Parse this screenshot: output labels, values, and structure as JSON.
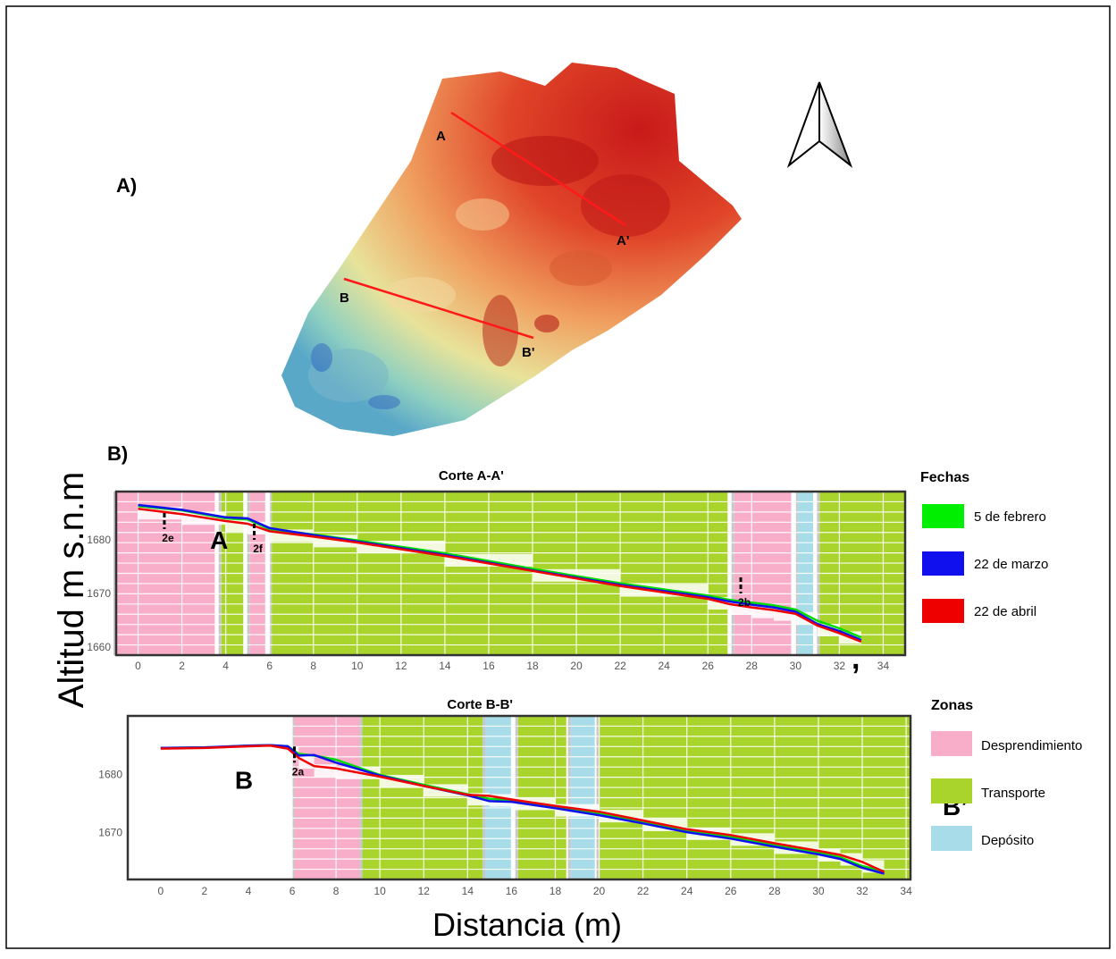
{
  "panels": {
    "a_label": "A)",
    "b_label": "B)"
  },
  "map": {
    "section_lines": [
      {
        "start_label": "A",
        "end_label": "A'"
      },
      {
        "start_label": "B",
        "end_label": "B'"
      }
    ],
    "north_arrow": "north-arrow-icon",
    "colors": {
      "line": "#ff1a1a",
      "ramp": [
        "#3a7fd0",
        "#8fd0c0",
        "#e8e39a",
        "#f0a060",
        "#e04428",
        "#c81a1a"
      ]
    }
  },
  "figure": {
    "ylabel": "Altitud m s.n.m",
    "xlabel": "Distancia (m)",
    "stray_mark": ","
  },
  "legends": {
    "fechas_title": "Fechas",
    "fechas": [
      {
        "label": "5 de febrero",
        "color": "#00ee00"
      },
      {
        "label": "22 de marzo",
        "color": "#1010ee"
      },
      {
        "label": "22 de abril",
        "color": "#ee0000"
      }
    ],
    "zonas_title": "Zonas",
    "zonas": [
      {
        "label": "Desprendimiento",
        "color": "#f8aec8"
      },
      {
        "label": "Transporte",
        "color": "#a9d42c"
      },
      {
        "label": "Depósito",
        "color": "#a8dce8"
      }
    ]
  },
  "chart_data": [
    {
      "type": "line",
      "title": "Corte A-A'",
      "xlabel": "Distancia (m)",
      "ylabel": "Altitud m s.n.m",
      "xlim": [
        -1,
        35
      ],
      "ylim": [
        1658.5,
        1689
      ],
      "xticks": [
        0,
        2,
        4,
        6,
        8,
        10,
        12,
        14,
        16,
        18,
        20,
        22,
        24,
        26,
        28,
        30,
        32,
        34
      ],
      "yticks": [
        1660,
        1670,
        1680
      ],
      "zones": [
        {
          "zone": "Desprendimiento",
          "x0": -1,
          "x1": 3.5
        },
        {
          "zone": "Transporte",
          "x0": 3.8,
          "x1": 4.8
        },
        {
          "zone": "Desprendimiento",
          "x0": 5.1,
          "x1": 5.8
        },
        {
          "zone": "Transporte",
          "x0": 6.1,
          "x1": 26.9
        },
        {
          "zone": "Desprendimiento",
          "x0": 27.2,
          "x1": 29.8
        },
        {
          "zone": "Depósito",
          "x0": 30.1,
          "x1": 30.8
        },
        {
          "zone": "Transporte",
          "x0": 31.1,
          "x1": 35
        }
      ],
      "annotations": [
        {
          "text": "2e",
          "x": 1.2,
          "y": 1682
        },
        {
          "text": "2f",
          "x": 5.3,
          "y": 1680
        },
        {
          "text": "2b",
          "x": 27.5,
          "y": 1670
        }
      ],
      "section_marker": "A",
      "series": [
        {
          "name": "5 de febrero",
          "color": "#00dd00",
          "x": [
            0,
            2,
            4,
            5,
            6,
            8,
            10,
            14,
            18,
            22,
            26,
            27,
            28,
            29,
            30,
            31,
            32,
            33
          ],
          "y": [
            1686.3,
            1685.5,
            1684.0,
            1683.8,
            1682.0,
            1681.0,
            1679.9,
            1677.5,
            1674.6,
            1671.9,
            1669.6,
            1668.8,
            1668.3,
            1667.8,
            1667.0,
            1664.9,
            1663.5,
            1661.8
          ]
        },
        {
          "name": "22 de marzo",
          "color": "#1010ee",
          "x": [
            0,
            2,
            4,
            5,
            6,
            8,
            10,
            14,
            18,
            22,
            26,
            27,
            28,
            29,
            30,
            31,
            32,
            33
          ],
          "y": [
            1686.5,
            1685.6,
            1684.2,
            1684.0,
            1682.2,
            1680.9,
            1679.7,
            1677.2,
            1674.3,
            1671.6,
            1669.3,
            1668.5,
            1667.9,
            1667.4,
            1666.6,
            1664.3,
            1663.0,
            1661.3
          ]
        },
        {
          "name": "22 de abril",
          "color": "#ee0000",
          "x": [
            0,
            2,
            4,
            5,
            6,
            8,
            10,
            14,
            18,
            22,
            26,
            27,
            28,
            29,
            30,
            31,
            32,
            33
          ],
          "y": [
            1685.8,
            1684.8,
            1683.5,
            1683.0,
            1681.6,
            1680.6,
            1679.5,
            1677.0,
            1674.2,
            1671.4,
            1669.0,
            1668.0,
            1667.4,
            1666.9,
            1666.2,
            1664.0,
            1662.6,
            1661.0
          ]
        }
      ]
    },
    {
      "type": "line",
      "title": "Corte B-B'",
      "xlabel": "Distancia (m)",
      "ylabel": "Altitud m s.n.m",
      "xlim": [
        -1.5,
        34.2
      ],
      "ylim": [
        1662,
        1690
      ],
      "xticks": [
        0,
        2,
        4,
        6,
        8,
        10,
        12,
        14,
        16,
        18,
        20,
        22,
        24,
        26,
        28,
        30,
        32,
        34
      ],
      "yticks": [
        1670,
        1680
      ],
      "zones": [
        {
          "zone": "Desprendimiento",
          "x0": 6.1,
          "x1": 9.2
        },
        {
          "zone": "Transporte",
          "x0": 9.2,
          "x1": 14.8
        },
        {
          "zone": "Depósito",
          "x0": 14.8,
          "x1": 16.0
        },
        {
          "zone": "Transporte",
          "x0": 16.3,
          "x1": 18.5
        },
        {
          "zone": "Depósito",
          "x0": 18.7,
          "x1": 19.8
        },
        {
          "zone": "Transporte",
          "x0": 20.0,
          "x1": 34.2
        }
      ],
      "annotations": [
        {
          "text": "2a",
          "x": 6.1,
          "y": 1682
        }
      ],
      "section_marker": "B",
      "end_marker": "B’",
      "series": [
        {
          "name": "5 de febrero",
          "color": "#00dd00",
          "x": [
            0,
            2,
            4,
            5,
            5.8,
            6.3,
            7,
            8,
            10,
            12,
            14,
            15,
            16,
            18,
            20,
            22,
            24,
            26,
            28,
            30,
            31,
            32,
            33
          ],
          "y": [
            1684.5,
            1684.6,
            1684.9,
            1685.0,
            1684.8,
            1683.5,
            1683.2,
            1682.5,
            1679.9,
            1678.2,
            1676.6,
            1675.8,
            1675.6,
            1674.5,
            1673.3,
            1671.9,
            1670.4,
            1669.3,
            1667.9,
            1666.6,
            1665.8,
            1664.3,
            1663.4
          ]
        },
        {
          "name": "22 de marzo",
          "color": "#1010ee",
          "x": [
            0,
            2,
            4,
            5,
            5.8,
            6.3,
            7,
            8,
            10,
            12,
            14,
            15,
            16,
            18,
            20,
            22,
            24,
            26,
            28,
            30,
            31,
            32,
            33
          ],
          "y": [
            1684.5,
            1684.6,
            1684.9,
            1685.0,
            1684.8,
            1683.2,
            1683.3,
            1682.0,
            1679.8,
            1678.0,
            1676.4,
            1675.4,
            1675.3,
            1674.2,
            1673.0,
            1671.6,
            1670.1,
            1669.0,
            1667.6,
            1666.3,
            1665.5,
            1664.0,
            1663.0
          ]
        },
        {
          "name": "22 de abril",
          "color": "#ee0000",
          "x": [
            0,
            2,
            4,
            5,
            5.8,
            6.3,
            7,
            8,
            10,
            12,
            14,
            15,
            16,
            18,
            20,
            22,
            24,
            26,
            28,
            30,
            31,
            32,
            33
          ],
          "y": [
            1684.4,
            1684.5,
            1684.8,
            1684.9,
            1684.4,
            1682.8,
            1681.4,
            1681.0,
            1679.6,
            1678.0,
            1676.5,
            1676.3,
            1675.7,
            1674.6,
            1673.6,
            1672.1,
            1670.6,
            1669.6,
            1668.2,
            1666.9,
            1666.2,
            1665.0,
            1663.3
          ]
        }
      ]
    }
  ]
}
